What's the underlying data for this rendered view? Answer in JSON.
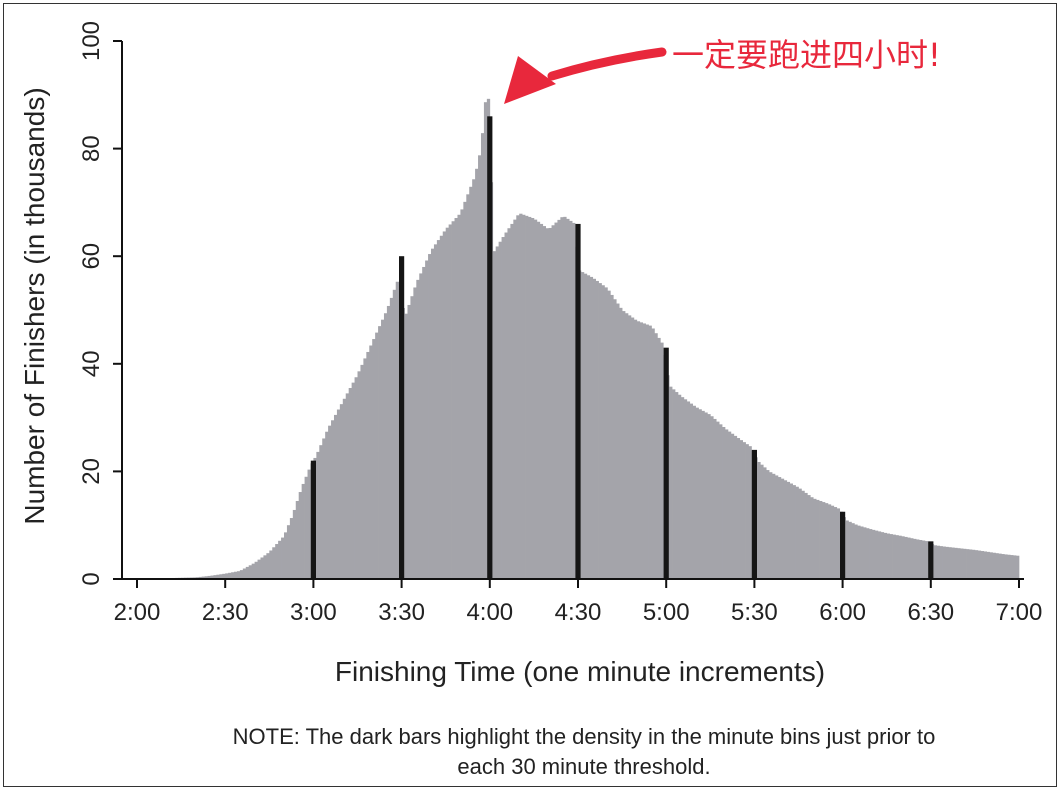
{
  "chart_data": {
    "type": "bar",
    "xlabel": "Finishing Time (one minute increments)",
    "ylabel": "Number of Finishers (in thousands)",
    "xlim": [
      120,
      420
    ],
    "ylim": [
      0,
      100
    ],
    "x_ticks": [
      {
        "value": 120,
        "label": "2:00"
      },
      {
        "value": 150,
        "label": "2:30"
      },
      {
        "value": 180,
        "label": "3:00"
      },
      {
        "value": 210,
        "label": "3:30"
      },
      {
        "value": 240,
        "label": "4:00"
      },
      {
        "value": 270,
        "label": "4:30"
      },
      {
        "value": 300,
        "label": "5:00"
      },
      {
        "value": 330,
        "label": "5:30"
      },
      {
        "value": 360,
        "label": "6:00"
      },
      {
        "value": 390,
        "label": "6:30"
      },
      {
        "value": 420,
        "label": "7:00"
      }
    ],
    "y_ticks": [
      0,
      20,
      40,
      60,
      80,
      100
    ],
    "distribution_knots": [
      [
        120,
        0.05
      ],
      [
        130,
        0.15
      ],
      [
        140,
        0.3
      ],
      [
        145,
        0.6
      ],
      [
        150,
        1.0
      ],
      [
        155,
        1.5
      ],
      [
        160,
        3.0
      ],
      [
        165,
        5.0
      ],
      [
        170,
        8.0
      ],
      [
        173,
        12.0
      ],
      [
        176,
        17.0
      ],
      [
        179,
        21.0
      ],
      [
        181,
        23.0
      ],
      [
        185,
        28.0
      ],
      [
        190,
        33.0
      ],
      [
        195,
        38.0
      ],
      [
        200,
        44.0
      ],
      [
        205,
        50.0
      ],
      [
        209,
        56.0
      ],
      [
        211,
        48.5
      ],
      [
        215,
        55.0
      ],
      [
        220,
        61.0
      ],
      [
        225,
        65.0
      ],
      [
        230,
        68.0
      ],
      [
        235,
        75.0
      ],
      [
        237,
        80.0
      ],
      [
        239,
        91.5
      ],
      [
        240,
        87.0
      ],
      [
        241,
        60.5
      ],
      [
        245,
        64.0
      ],
      [
        250,
        68.0
      ],
      [
        255,
        67.0
      ],
      [
        260,
        65.0
      ],
      [
        265,
        67.5
      ],
      [
        269,
        66.0
      ],
      [
        270,
        57.5
      ],
      [
        275,
        56.0
      ],
      [
        280,
        54.0
      ],
      [
        285,
        50.0
      ],
      [
        290,
        48.0
      ],
      [
        295,
        47.0
      ],
      [
        299,
        43.5
      ],
      [
        301,
        36.0
      ],
      [
        305,
        34.0
      ],
      [
        310,
        32.0
      ],
      [
        315,
        30.5
      ],
      [
        320,
        28.0
      ],
      [
        325,
        26.0
      ],
      [
        329,
        24.5
      ],
      [
        331,
        22.0
      ],
      [
        335,
        20.0
      ],
      [
        340,
        18.5
      ],
      [
        345,
        17.0
      ],
      [
        350,
        15.0
      ],
      [
        355,
        14.0
      ],
      [
        359,
        13.0
      ],
      [
        361,
        11.0
      ],
      [
        365,
        10.0
      ],
      [
        370,
        9.2
      ],
      [
        375,
        8.5
      ],
      [
        380,
        8.0
      ],
      [
        385,
        7.4
      ],
      [
        389,
        7.0
      ],
      [
        391,
        6.3
      ],
      [
        395,
        6.0
      ],
      [
        400,
        5.7
      ],
      [
        405,
        5.4
      ],
      [
        410,
        5.0
      ],
      [
        415,
        4.6
      ],
      [
        420,
        4.3
      ]
    ],
    "highlight_bars": [
      {
        "x": 180,
        "value": 22
      },
      {
        "x": 210,
        "value": 60
      },
      {
        "x": 240,
        "value": 86
      },
      {
        "x": 270,
        "value": 66
      },
      {
        "x": 300,
        "value": 43
      },
      {
        "x": 330,
        "value": 24
      },
      {
        "x": 360,
        "value": 12.5
      },
      {
        "x": 390,
        "value": 7
      }
    ],
    "colors": {
      "bars": "#a4a4aa",
      "highlight": "#151515",
      "annotation": "#e8283c"
    },
    "annotation": {
      "text": "一定要跑进四小时!",
      "points_to_x": 240
    }
  },
  "note": {
    "line1": "NOTE: The dark bars highlight the density in the minute bins just prior to",
    "line2": "each 30 minute threshold."
  }
}
